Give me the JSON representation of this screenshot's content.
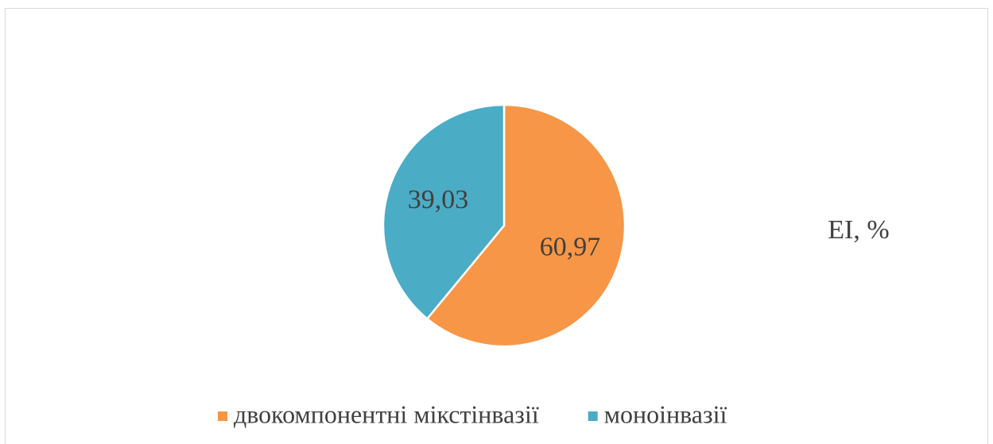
{
  "chart_data": {
    "type": "pie",
    "title": "EI, %",
    "categories": [
      "двокомпонентні мікстінвазії",
      "моноінвазії"
    ],
    "values": [
      60.97,
      39.03
    ],
    "value_labels": [
      "60,97",
      "39,03"
    ],
    "colors": [
      "#F79646",
      "#4BACC6"
    ],
    "legend": "bottom"
  }
}
